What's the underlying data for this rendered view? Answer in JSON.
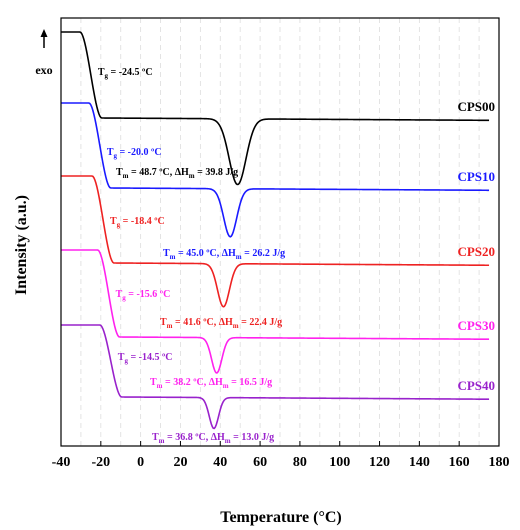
{
  "chart_data": {
    "type": "line",
    "xlabel": "Temperature (°C)",
    "ylabel": "Intensity (a.u.)",
    "xlim": [
      -40,
      180
    ],
    "x_ticks": [
      -40,
      -20,
      0,
      20,
      40,
      60,
      80,
      100,
      120,
      140,
      160,
      180
    ],
    "grid": "vertical-dashed",
    "exo_label": "exo",
    "exo_direction": "up",
    "series": [
      {
        "name": "CPS00",
        "color": "#000000",
        "offset": 0,
        "tg_value": -24.5,
        "tm_value": 48.7,
        "dhm_value": 39.8,
        "tg_label": {
          "main": "T",
          "sub": "g",
          "rest": " = -24.5 ºC"
        },
        "tm_label": {
          "main": "T",
          "sub": "m",
          "mid": " = 48.7 ºC, ΔH",
          "sub2": "m",
          "rest": " = 39.8 J/g"
        }
      },
      {
        "name": "CPS10",
        "color": "#1a1aff",
        "offset": 1,
        "tg_value": -20.0,
        "tm_value": 45.0,
        "dhm_value": 26.2,
        "tg_label": {
          "main": "T",
          "sub": "g",
          "rest": " = -20.0 ºC"
        },
        "tm_label": {
          "main": "T",
          "sub": "m",
          "mid": " = 45.0 ºC, ΔH",
          "sub2": "m",
          "rest": " = 26.2 J/g"
        }
      },
      {
        "name": "CPS20",
        "color": "#ee2222",
        "offset": 2,
        "tg_value": -18.4,
        "tm_value": 41.6,
        "dhm_value": 22.4,
        "tg_label": {
          "main": "T",
          "sub": "g",
          "rest": " = -18.4 ºC"
        },
        "tm_label": {
          "main": "T",
          "sub": "m",
          "mid": " = 41.6 ºC, ΔH",
          "sub2": "m",
          "rest": " = 22.4 J/g"
        }
      },
      {
        "name": "CPS30",
        "color": "#ff22ee",
        "offset": 3,
        "tg_value": -15.6,
        "tm_value": 38.2,
        "dhm_value": 16.5,
        "tg_label": {
          "main": "T",
          "sub": "g",
          "rest": " = -15.6 ºC"
        },
        "tm_label": {
          "main": "T",
          "sub": "m",
          "mid": " = 38.2 ºC, ΔH",
          "sub2": "m",
          "rest": " = 16.5 J/g"
        }
      },
      {
        "name": "CPS40",
        "color": "#9922cc",
        "offset": 4,
        "tg_value": -14.5,
        "tm_value": 36.8,
        "dhm_value": 13.0,
        "tg_label": {
          "main": "T",
          "sub": "g",
          "rest": " = -14.5 ºC"
        },
        "tm_label": {
          "main": "T",
          "sub": "m",
          "mid": " = 36.8 ºC, ΔH",
          "sub2": "m",
          "rest": " = 13.0 J/g"
        }
      }
    ]
  }
}
